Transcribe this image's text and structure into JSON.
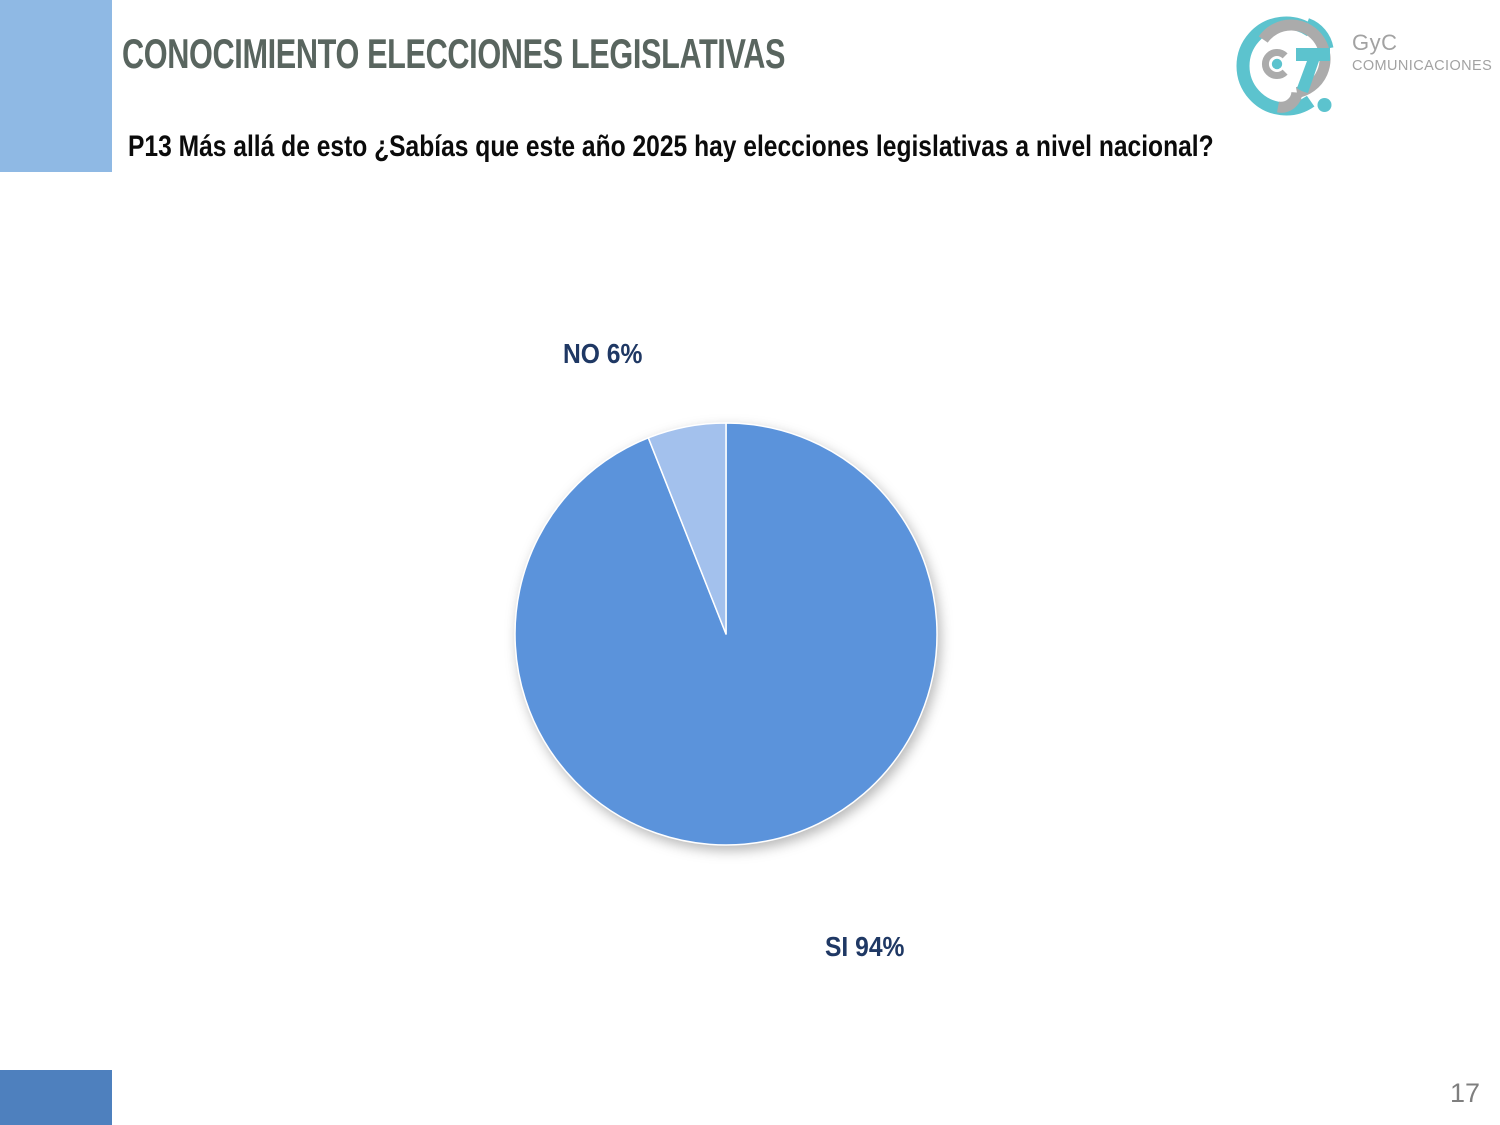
{
  "slide": {
    "title": "CONOCIMIENTO ELECCIONES LEGISLATIVAS",
    "question": "P13 Más allá de esto ¿Sabías que este año 2025 hay elecciones legislativas a nivel nacional?",
    "page_number": "17"
  },
  "logo": {
    "name": "GyC",
    "subtitle": "COMUNICACIONES",
    "teal": "#5CC3CE",
    "gray": "#ABABAB"
  },
  "colors": {
    "title": "#59655F",
    "question": "#0B0B0B",
    "page_number": "#7F7F7F",
    "logo_text": "#A2A2A2",
    "top_left_rect": "#8FB9E4",
    "bottom_left_rect": "#4E80BE",
    "background": "#FFFFFF"
  },
  "chart_data": {
    "type": "pie",
    "title": "",
    "categories": [
      "SI",
      "NO"
    ],
    "values": [
      94,
      6
    ],
    "slices": [
      {
        "label": "SI",
        "value": 94,
        "display": "SI 94%",
        "color": "#5B93DB"
      },
      {
        "label": "NO",
        "value": 6,
        "display": "NO 6%",
        "color": "#A3C1ED"
      }
    ],
    "start_angle_deg": 0,
    "direction": "clockwise",
    "legend": "none",
    "label_color": "#1F3864"
  }
}
